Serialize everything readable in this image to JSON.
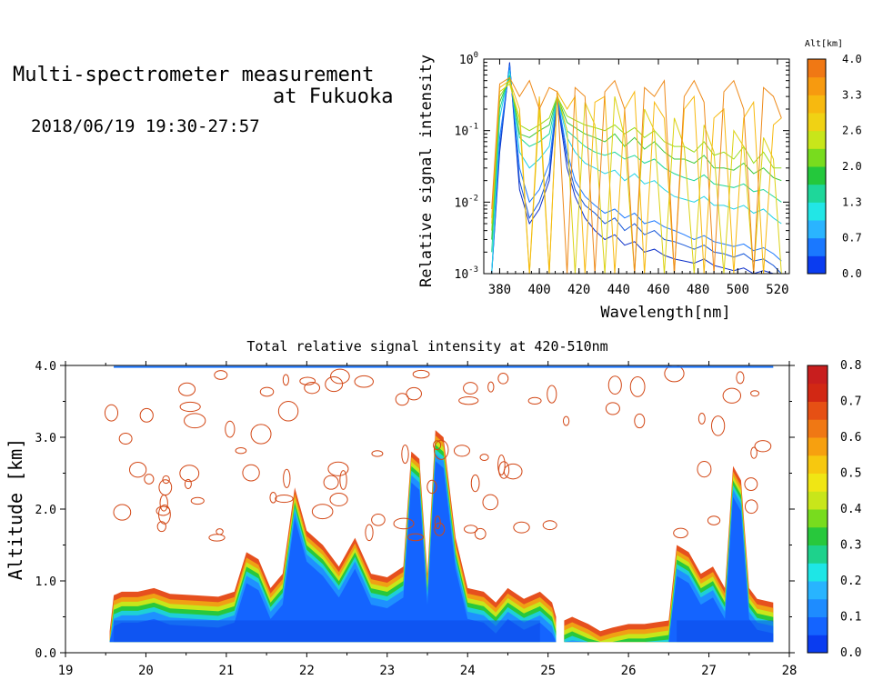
{
  "header": {
    "title_line1": "Multi-spectrometer measurement",
    "title_line2": "at Fukuoka",
    "datetime": "2018/06/19 19:30-27:57"
  },
  "chart_data": [
    {
      "type": "line",
      "xlabel": "Wavelength[nm]",
      "ylabel": "Relative signal intensity",
      "xlim": [
        372,
        526
      ],
      "ylim": [
        0.001,
        1
      ],
      "yscale": "log",
      "x_ticks": [
        380,
        400,
        420,
        440,
        460,
        480,
        500,
        520
      ],
      "y_ticks": [
        {
          "value": 0.001,
          "base": "10",
          "exp": "-3"
        },
        {
          "value": 0.01,
          "base": "10",
          "exp": "-2"
        },
        {
          "value": 0.1,
          "base": "10",
          "exp": "-1"
        },
        {
          "value": 1,
          "base": "10",
          "exp": "0"
        }
      ],
      "colorbar": {
        "title": "Alt[km]",
        "tick_labels": [
          "0.0",
          "0.7",
          "1.3",
          "2.0",
          "2.6",
          "3.3",
          "4.0"
        ],
        "colors": [
          "#0a3cf0",
          "#1a78ff",
          "#2ab4ff",
          "#22e6e6",
          "#1ed79a",
          "#24c83c",
          "#78dc1e",
          "#c8e61a",
          "#f0d214",
          "#f7b90f",
          "#f79a0f",
          "#f07814"
        ]
      },
      "series": [
        {
          "alt": 0.2,
          "color": "#0a2ec8",
          "x": [
            376,
            380,
            385,
            390,
            395,
            400,
            405,
            409,
            414,
            418,
            423,
            428,
            433,
            438,
            443,
            448,
            453,
            458,
            463,
            468,
            473,
            478,
            483,
            488,
            493,
            498,
            503,
            508,
            513,
            518,
            522
          ],
          "y": [
            0.001,
            0.05,
            0.9,
            0.015,
            0.005,
            0.008,
            0.02,
            0.27,
            0.03,
            0.012,
            0.006,
            0.004,
            0.003,
            0.0035,
            0.0025,
            0.0028,
            0.002,
            0.0022,
            0.0018,
            0.0016,
            0.0015,
            0.0014,
            0.0016,
            0.0013,
            0.0012,
            0.0011,
            0.0012,
            0.001,
            0.0011,
            0.001,
            0.001
          ]
        },
        {
          "alt": 0.5,
          "color": "#1254d8",
          "x": [
            376,
            380,
            385,
            390,
            395,
            400,
            405,
            409,
            414,
            418,
            423,
            428,
            433,
            438,
            443,
            448,
            453,
            458,
            463,
            468,
            473,
            478,
            483,
            488,
            493,
            498,
            503,
            508,
            513,
            518,
            522
          ],
          "y": [
            0.001,
            0.06,
            0.85,
            0.02,
            0.006,
            0.01,
            0.025,
            0.28,
            0.04,
            0.015,
            0.009,
            0.007,
            0.005,
            0.006,
            0.004,
            0.005,
            0.0035,
            0.004,
            0.003,
            0.0028,
            0.0025,
            0.0022,
            0.0025,
            0.002,
            0.0019,
            0.0017,
            0.0019,
            0.0015,
            0.0016,
            0.0013,
            0.001
          ]
        },
        {
          "alt": 0.8,
          "color": "#1a78ff",
          "x": [
            376,
            380,
            385,
            390,
            395,
            400,
            405,
            409,
            414,
            418,
            423,
            428,
            433,
            438,
            443,
            448,
            453,
            458,
            463,
            468,
            473,
            478,
            483,
            488,
            493,
            498,
            503,
            508,
            513,
            518,
            522
          ],
          "y": [
            0.001,
            0.08,
            0.8,
            0.03,
            0.01,
            0.015,
            0.035,
            0.3,
            0.05,
            0.02,
            0.012,
            0.009,
            0.007,
            0.008,
            0.006,
            0.007,
            0.005,
            0.0055,
            0.0045,
            0.004,
            0.0035,
            0.003,
            0.0034,
            0.0028,
            0.0026,
            0.0024,
            0.0026,
            0.0021,
            0.0023,
            0.0019,
            0.0015
          ]
        },
        {
          "alt": 1.2,
          "color": "#22d2e6",
          "x": [
            376,
            380,
            385,
            390,
            395,
            400,
            405,
            409,
            414,
            418,
            423,
            428,
            433,
            438,
            443,
            448,
            453,
            458,
            463,
            468,
            473,
            478,
            483,
            488,
            493,
            498,
            503,
            508,
            513,
            518,
            522
          ],
          "y": [
            0.001,
            0.15,
            0.7,
            0.05,
            0.03,
            0.04,
            0.06,
            0.3,
            0.08,
            0.05,
            0.035,
            0.03,
            0.025,
            0.028,
            0.02,
            0.025,
            0.018,
            0.02,
            0.015,
            0.012,
            0.011,
            0.01,
            0.012,
            0.009,
            0.009,
            0.008,
            0.009,
            0.007,
            0.008,
            0.006,
            0.005
          ]
        },
        {
          "alt": 1.7,
          "color": "#1ed79a",
          "x": [
            376,
            380,
            385,
            390,
            395,
            400,
            405,
            409,
            414,
            418,
            423,
            428,
            433,
            438,
            443,
            448,
            453,
            458,
            463,
            468,
            473,
            478,
            483,
            488,
            493,
            498,
            503,
            508,
            513,
            518,
            522
          ],
          "y": [
            0.002,
            0.2,
            0.6,
            0.08,
            0.06,
            0.07,
            0.09,
            0.3,
            0.1,
            0.08,
            0.06,
            0.05,
            0.045,
            0.05,
            0.04,
            0.045,
            0.035,
            0.04,
            0.03,
            0.025,
            0.022,
            0.02,
            0.024,
            0.018,
            0.017,
            0.016,
            0.018,
            0.014,
            0.015,
            0.012,
            0.01
          ]
        },
        {
          "alt": 2.1,
          "color": "#3cc83c",
          "x": [
            376,
            380,
            385,
            390,
            395,
            400,
            405,
            409,
            414,
            418,
            423,
            428,
            433,
            438,
            443,
            448,
            453,
            458,
            463,
            468,
            473,
            478,
            483,
            488,
            493,
            498,
            503,
            508,
            513,
            518,
            522
          ],
          "y": [
            0.003,
            0.25,
            0.55,
            0.09,
            0.08,
            0.1,
            0.12,
            0.3,
            0.13,
            0.11,
            0.09,
            0.08,
            0.07,
            0.09,
            0.06,
            0.08,
            0.055,
            0.07,
            0.05,
            0.04,
            0.04,
            0.035,
            0.045,
            0.03,
            0.03,
            0.028,
            0.035,
            0.025,
            0.03,
            0.022,
            0.02
          ]
        },
        {
          "alt": 2.5,
          "color": "#96dc1e",
          "x": [
            376,
            380,
            385,
            390,
            395,
            400,
            405,
            409,
            414,
            418,
            423,
            428,
            433,
            438,
            443,
            448,
            453,
            458,
            463,
            468,
            473,
            478,
            483,
            488,
            493,
            498,
            503,
            508,
            513,
            518,
            522
          ],
          "y": [
            0.004,
            0.3,
            0.5,
            0.12,
            0.1,
            0.12,
            0.15,
            0.3,
            0.16,
            0.14,
            0.12,
            0.11,
            0.1,
            0.12,
            0.09,
            0.11,
            0.08,
            0.1,
            0.07,
            0.06,
            0.06,
            0.05,
            0.07,
            0.045,
            0.05,
            0.04,
            0.06,
            0.035,
            0.05,
            0.03,
            0.03
          ]
        },
        {
          "alt": 2.9,
          "color": "#dcd214",
          "x": [
            376,
            380,
            385,
            390,
            395,
            400,
            405,
            409,
            414,
            418,
            423,
            428,
            433,
            438,
            443,
            448,
            453,
            458,
            463,
            468,
            473,
            478,
            483,
            488,
            493,
            498,
            503,
            508,
            513,
            518,
            522
          ],
          "y": [
            0.005,
            0.35,
            0.45,
            0.15,
            0.001,
            0.2,
            0.001,
            0.32,
            0.1,
            0.001,
            0.25,
            0.12,
            0.001,
            0.3,
            0.08,
            0.001,
            0.2,
            0.1,
            0.001,
            0.15,
            0.06,
            0.001,
            0.12,
            0.05,
            0.001,
            0.1,
            0.06,
            0.001,
            0.08,
            0.04,
            0.001
          ]
        },
        {
          "alt": 3.4,
          "color": "#f7b90f",
          "x": [
            376,
            380,
            385,
            390,
            395,
            400,
            405,
            409,
            414,
            418,
            423,
            428,
            433,
            438,
            443,
            448,
            453,
            458,
            463,
            468,
            473,
            478,
            483,
            488,
            493,
            498,
            503,
            508,
            513,
            518,
            522
          ],
          "y": [
            0.006,
            0.4,
            0.5,
            0.2,
            0.001,
            0.3,
            0.001,
            0.35,
            0.2,
            0.3,
            0.001,
            0.25,
            0.3,
            0.001,
            0.2,
            0.35,
            0.001,
            0.25,
            0.15,
            0.001,
            0.2,
            0.3,
            0.001,
            0.15,
            0.2,
            0.001,
            0.15,
            0.25,
            0.001,
            0.12,
            0.15
          ]
        },
        {
          "alt": 3.9,
          "color": "#ee8a1a",
          "x": [
            376,
            380,
            385,
            390,
            395,
            400,
            405,
            409,
            414,
            418,
            423,
            428,
            433,
            438,
            443,
            448,
            453,
            458,
            463,
            468,
            473,
            478,
            483,
            488,
            493,
            498,
            503,
            508,
            513,
            518,
            522
          ],
          "y": [
            0.008,
            0.45,
            0.55,
            0.3,
            0.5,
            0.2,
            0.4,
            0.35,
            0.001,
            0.4,
            0.3,
            0.001,
            0.35,
            0.5,
            0.2,
            0.001,
            0.4,
            0.3,
            0.5,
            0.001,
            0.3,
            0.5,
            0.25,
            0.001,
            0.35,
            0.5,
            0.2,
            0.001,
            0.4,
            0.3,
            0.15
          ]
        }
      ]
    },
    {
      "type": "heatmap",
      "title": "Total relative signal intensity at 420-510nm",
      "xlabel": "",
      "ylabel": "Altitude [km]",
      "xlim": [
        19,
        28
      ],
      "ylim": [
        0,
        4
      ],
      "x_ticks": [
        "19",
        "20",
        "21",
        "22",
        "23",
        "24",
        "25",
        "26",
        "27",
        "28"
      ],
      "y_ticks": [
        "0.0",
        "1.0",
        "2.0",
        "3.0",
        "4.0"
      ],
      "colorbar": {
        "tick_labels": [
          "0.0",
          "0.1",
          "0.2",
          "0.3",
          "0.4",
          "0.5",
          "0.6",
          "0.7",
          "0.8"
        ],
        "colors": [
          "#0a3cf0",
          "#1464ff",
          "#1e8cff",
          "#28b4ff",
          "#1ee6e6",
          "#1ed28c",
          "#28c83c",
          "#78dc1e",
          "#c8e61a",
          "#f0e614",
          "#f7c80f",
          "#f7a00f",
          "#f07814",
          "#e65014",
          "#d22814",
          "#c81e1e"
        ]
      },
      "plume_profile": {
        "x": [
          19.55,
          19.6,
          19.7,
          19.9,
          20.1,
          20.3,
          20.6,
          20.9,
          21.1,
          21.25,
          21.4,
          21.55,
          21.7,
          21.85,
          22.0,
          22.2,
          22.4,
          22.6,
          22.8,
          23.0,
          23.2,
          23.3,
          23.4,
          23.5,
          23.6,
          23.7,
          23.85,
          24.0,
          24.2,
          24.35,
          24.5,
          24.7,
          24.9,
          25.05,
          25.1
        ],
        "top_km": [
          0.3,
          0.8,
          0.85,
          0.85,
          0.9,
          0.82,
          0.8,
          0.78,
          0.85,
          1.4,
          1.3,
          0.9,
          1.1,
          2.3,
          1.7,
          1.5,
          1.2,
          1.6,
          1.1,
          1.05,
          1.2,
          2.8,
          2.7,
          1.1,
          3.1,
          3.0,
          1.6,
          0.9,
          0.85,
          0.7,
          0.9,
          0.75,
          0.85,
          0.7,
          0.5
        ]
      },
      "plume2_profile": {
        "x": [
          25.2,
          25.3,
          25.5,
          25.65,
          25.8,
          26.0,
          26.2,
          26.5,
          26.6,
          26.75,
          26.9,
          27.05,
          27.2,
          27.3,
          27.4,
          27.5,
          27.6,
          27.8
        ],
        "top_km": [
          0.45,
          0.5,
          0.4,
          0.3,
          0.35,
          0.4,
          0.4,
          0.45,
          1.5,
          1.4,
          1.1,
          1.2,
          0.9,
          2.6,
          2.4,
          0.9,
          0.75,
          0.7
        ]
      }
    }
  ]
}
